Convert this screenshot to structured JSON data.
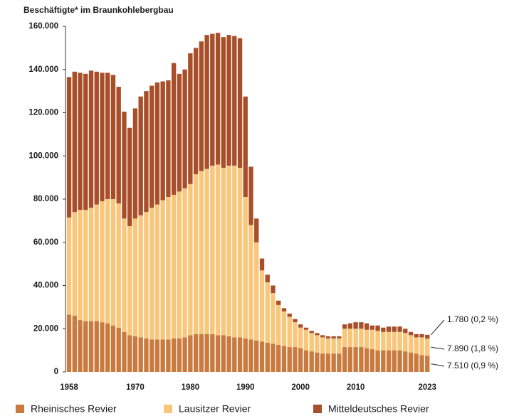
{
  "chart_data": {
    "type": "stacked_bar",
    "title": "Beschäftigte* im Braunkohlebergbau",
    "x": [
      1958,
      1959,
      1960,
      1961,
      1962,
      1963,
      1964,
      1965,
      1966,
      1967,
      1968,
      1969,
      1970,
      1971,
      1972,
      1973,
      1974,
      1975,
      1976,
      1977,
      1978,
      1979,
      1980,
      1981,
      1982,
      1983,
      1984,
      1985,
      1986,
      1987,
      1988,
      1989,
      1990,
      1991,
      1992,
      1993,
      1994,
      1995,
      1996,
      1997,
      1998,
      1999,
      2000,
      2001,
      2002,
      2003,
      2004,
      2005,
      2006,
      2007,
      2008,
      2009,
      2010,
      2011,
      2012,
      2013,
      2014,
      2015,
      2016,
      2017,
      2018,
      2019,
      2020,
      2021,
      2022,
      2023
    ],
    "xlim": [
      1957,
      2024
    ],
    "xticks": [
      1958,
      1970,
      1980,
      1990,
      2000,
      2010,
      2023
    ],
    "ylim": [
      0,
      160000
    ],
    "yticks": [
      0,
      {
        "value": 20000,
        "label": "20.000"
      },
      {
        "value": 40000,
        "label": "40.000"
      },
      {
        "value": 60000,
        "label": "60.000"
      },
      {
        "value": 80000,
        "label": "80.000"
      },
      {
        "value": 100000,
        "label": "100.000"
      },
      {
        "value": 120000,
        "label": "120.000"
      },
      {
        "value": 140000,
        "label": "140.000"
      },
      {
        "value": 160000,
        "label": "160.000"
      }
    ],
    "series": [
      {
        "name": "Rheinisches Revier",
        "color": "#c97a3e",
        "values": [
          26500,
          26000,
          24000,
          23500,
          23500,
          23500,
          23000,
          22500,
          21500,
          20500,
          18500,
          17000,
          16500,
          16000,
          15500,
          15000,
          15000,
          15000,
          15000,
          15500,
          15500,
          16000,
          17000,
          17500,
          17500,
          17500,
          17500,
          17000,
          17000,
          16500,
          16000,
          16000,
          15500,
          15000,
          14500,
          14000,
          13500,
          13000,
          12500,
          12000,
          11500,
          11500,
          11000,
          10000,
          9500,
          9000,
          8500,
          8500,
          8500,
          8500,
          11500,
          11500,
          11500,
          11500,
          11000,
          10500,
          10000,
          10000,
          10000,
          10000,
          10000,
          9500,
          9000,
          8500,
          7800,
          7510
        ]
      },
      {
        "name": "Lausitzer Revier",
        "color": "#f8c77b",
        "values": [
          45000,
          48000,
          51000,
          51500,
          52500,
          54000,
          56000,
          57500,
          58500,
          57500,
          52500,
          50500,
          54500,
          56500,
          58500,
          61000,
          62500,
          64500,
          66000,
          66500,
          68000,
          69000,
          70000,
          74000,
          75500,
          76500,
          78000,
          79000,
          77500,
          79000,
          79500,
          78500,
          65500,
          53000,
          45500,
          33000,
          28000,
          23500,
          18500,
          16000,
          14000,
          11500,
          9500,
          9500,
          8500,
          8000,
          7500,
          7000,
          7000,
          7000,
          8500,
          8500,
          8500,
          8500,
          8500,
          9000,
          9000,
          8500,
          8500,
          8500,
          8500,
          8500,
          8000,
          7500,
          8200,
          7890
        ]
      },
      {
        "name": "Mitteldeutsches Revier",
        "color": "#a84f2a",
        "values": [
          65000,
          65000,
          63500,
          63000,
          63500,
          61500,
          59500,
          58500,
          57500,
          54000,
          49500,
          45500,
          51000,
          55000,
          56000,
          56500,
          56500,
          55000,
          54000,
          61000,
          54500,
          55000,
          60500,
          58500,
          60000,
          62000,
          61000,
          61000,
          60500,
          60500,
          60000,
          60000,
          46500,
          27000,
          11000,
          5500,
          3500,
          3500,
          2000,
          1500,
          1500,
          1500,
          1500,
          1000,
          1000,
          1000,
          1000,
          1000,
          1000,
          1000,
          2000,
          2500,
          3000,
          3000,
          3000,
          2000,
          2500,
          2000,
          2500,
          2500,
          2500,
          2000,
          1500,
          1500,
          1500,
          1780
        ]
      }
    ],
    "annotations": [
      "1.780 (0,2 %)",
      "7.890 (1,8 %)",
      "7.510 (0,9 %)"
    ]
  }
}
